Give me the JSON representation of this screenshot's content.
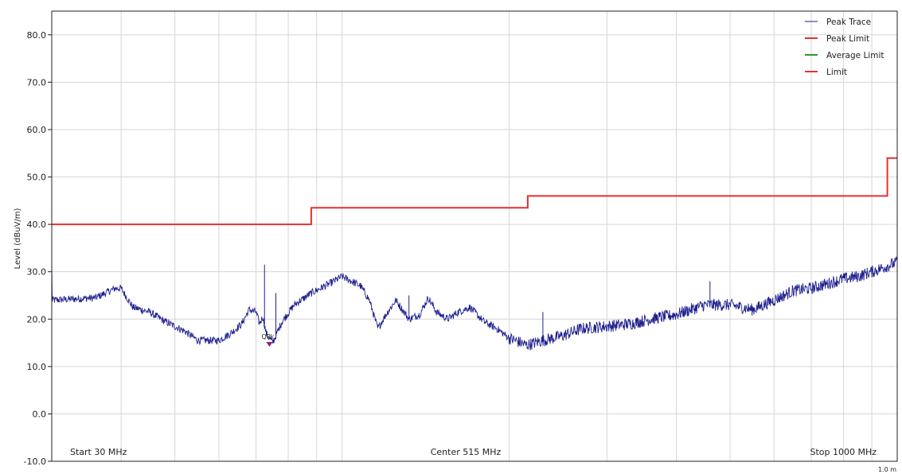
{
  "chart_data": {
    "type": "line",
    "title": "",
    "ylabel": "Level (dBuV/m)",
    "ylim": [
      -10,
      85
    ],
    "yticks": [
      "80.0",
      "70.0",
      "60.0",
      "50.0",
      "40.0",
      "30.0",
      "20.0",
      "10.0",
      "0.0",
      "-10.0"
    ],
    "ytick_values": [
      80,
      70,
      60,
      50,
      40,
      30,
      20,
      10,
      0,
      -10
    ],
    "x_scale": "log",
    "xlim_mhz": [
      30,
      1000
    ],
    "footer": {
      "start": "Start 30 MHz",
      "center": "Center 515 MHz",
      "stop": "Stop 1000 MHz",
      "corner": "1.0 m"
    },
    "legend": [
      {
        "name": "Peak Trace",
        "color": "#1f1f8f",
        "style": "thin"
      },
      {
        "name": "Peak Limit",
        "color": "#e53030",
        "style": "thick"
      },
      {
        "name": "Average Limit",
        "color": "#2a9a2a",
        "style": "thick"
      },
      {
        "name": "Limit",
        "color": "#e53030",
        "style": "thick"
      }
    ],
    "series": [
      {
        "name": "Limit",
        "color": "#e53030",
        "x": [
          30,
          88,
          88,
          216,
          216,
          960,
          960,
          1000
        ],
        "y": [
          40,
          40,
          43.5,
          43.5,
          46,
          46,
          54,
          54
        ]
      },
      {
        "name": "Peak Trace",
        "color": "#1f1f8f",
        "x": [
          30,
          36,
          39,
          40,
          42,
          45,
          48,
          52,
          55,
          60,
          63,
          66,
          68,
          70,
          71,
          72,
          73,
          75,
          78,
          82,
          88,
          95,
          100,
          104,
          108,
          112,
          116,
          120,
          125,
          132,
          138,
          143,
          148,
          155,
          162,
          170,
          180,
          190,
          200,
          215,
          230,
          250,
          270,
          300,
          330,
          360,
          400,
          450,
          500,
          550,
          600,
          650,
          700,
          750,
          800,
          850,
          900,
          950,
          1000
        ],
        "y": [
          24,
          24.5,
          26.5,
          26.5,
          22.5,
          21.5,
          19.5,
          17.5,
          15.5,
          15.5,
          17,
          19,
          22,
          21.5,
          19,
          20.5,
          17,
          15,
          19.5,
          23,
          25.5,
          27.5,
          29,
          28,
          27,
          24,
          18,
          21,
          24,
          20,
          21,
          24.5,
          21.5,
          20,
          21.5,
          22.5,
          19.5,
          18,
          16,
          14.5,
          15.5,
          16.5,
          18,
          18.5,
          19,
          20,
          21,
          23,
          23,
          22,
          24,
          26,
          26.5,
          27.5,
          28.5,
          29,
          30,
          31,
          32
        ]
      }
    ],
    "spikes": [
      {
        "x": 72.5,
        "y": 31.5
      },
      {
        "x": 76,
        "y": 25.5
      },
      {
        "x": 132,
        "y": 25
      },
      {
        "x": 230,
        "y": 21.5
      },
      {
        "x": 460,
        "y": 28
      }
    ],
    "markers": [
      {
        "label": "QPk",
        "x": 74,
        "y": 14.5,
        "color": "#8a1e8a"
      }
    ]
  }
}
